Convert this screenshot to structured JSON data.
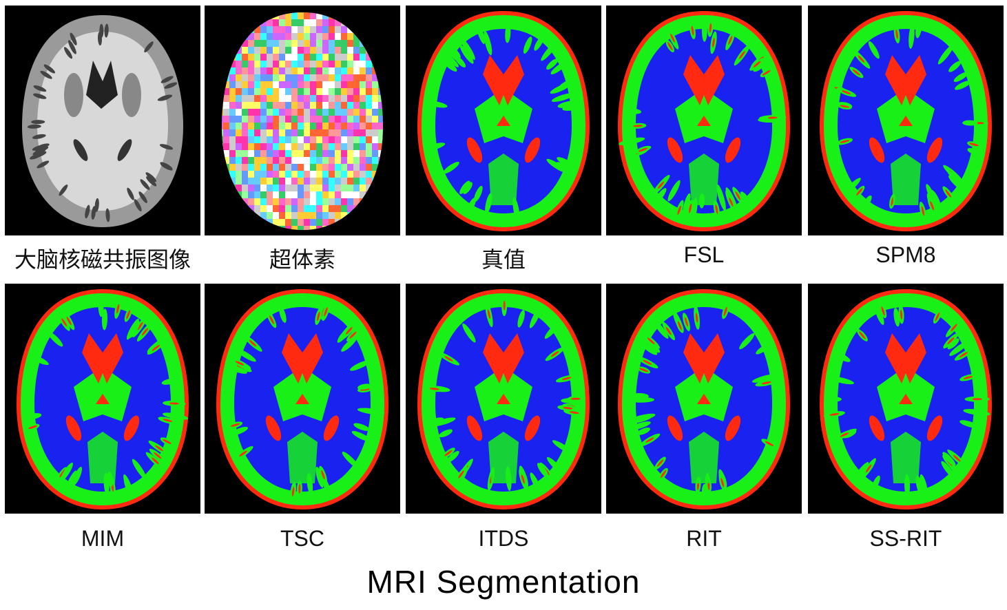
{
  "colors": {
    "csf": "#ff2a10",
    "gray_matter": "#18f018",
    "white_matter": "#1a22f0",
    "background": "#000000"
  },
  "panels": [
    {
      "label": "大脑核磁共振图像",
      "kind": "mri"
    },
    {
      "label": "超体素",
      "kind": "supervoxel"
    },
    {
      "label": "真值",
      "kind": "segmentation"
    },
    {
      "label": "FSL",
      "kind": "segmentation"
    },
    {
      "label": "SPM8",
      "kind": "segmentation"
    },
    {
      "label": "MIM",
      "kind": "segmentation"
    },
    {
      "label": "TSC",
      "kind": "segmentation"
    },
    {
      "label": "ITDS",
      "kind": "segmentation"
    },
    {
      "label": "RIT",
      "kind": "segmentation"
    },
    {
      "label": "SS-RIT",
      "kind": "segmentation"
    }
  ],
  "caption": "MRI Segmentation"
}
